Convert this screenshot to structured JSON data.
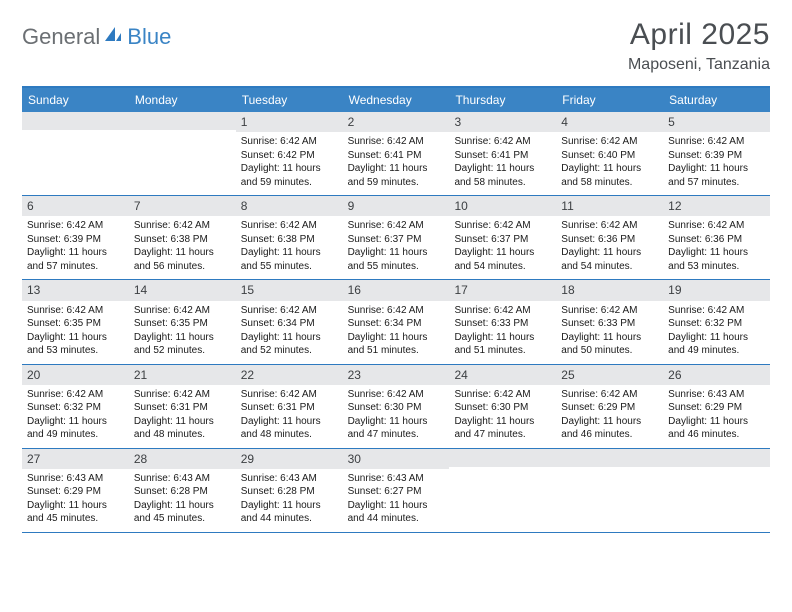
{
  "brand": {
    "text1": "General",
    "text2": "Blue",
    "color1": "#6b6f73",
    "color2": "#3a84c5"
  },
  "title": "April 2025",
  "location": "Maposeni, Tanzania",
  "colors": {
    "header_bg": "#3a84c5",
    "header_text": "#ffffff",
    "border": "#2e7ac0",
    "daynum_bg": "#e6e7e9",
    "daynum_text": "#3c3f42",
    "body_text": "#1a1a1a",
    "page_bg": "#ffffff"
  },
  "day_names": [
    "Sunday",
    "Monday",
    "Tuesday",
    "Wednesday",
    "Thursday",
    "Friday",
    "Saturday"
  ],
  "weeks": [
    [
      {
        "empty": true
      },
      {
        "empty": true
      },
      {
        "n": "1",
        "sunrise": "Sunrise: 6:42 AM",
        "sunset": "Sunset: 6:42 PM",
        "daylight": "Daylight: 11 hours and 59 minutes."
      },
      {
        "n": "2",
        "sunrise": "Sunrise: 6:42 AM",
        "sunset": "Sunset: 6:41 PM",
        "daylight": "Daylight: 11 hours and 59 minutes."
      },
      {
        "n": "3",
        "sunrise": "Sunrise: 6:42 AM",
        "sunset": "Sunset: 6:41 PM",
        "daylight": "Daylight: 11 hours and 58 minutes."
      },
      {
        "n": "4",
        "sunrise": "Sunrise: 6:42 AM",
        "sunset": "Sunset: 6:40 PM",
        "daylight": "Daylight: 11 hours and 58 minutes."
      },
      {
        "n": "5",
        "sunrise": "Sunrise: 6:42 AM",
        "sunset": "Sunset: 6:39 PM",
        "daylight": "Daylight: 11 hours and 57 minutes."
      }
    ],
    [
      {
        "n": "6",
        "sunrise": "Sunrise: 6:42 AM",
        "sunset": "Sunset: 6:39 PM",
        "daylight": "Daylight: 11 hours and 57 minutes."
      },
      {
        "n": "7",
        "sunrise": "Sunrise: 6:42 AM",
        "sunset": "Sunset: 6:38 PM",
        "daylight": "Daylight: 11 hours and 56 minutes."
      },
      {
        "n": "8",
        "sunrise": "Sunrise: 6:42 AM",
        "sunset": "Sunset: 6:38 PM",
        "daylight": "Daylight: 11 hours and 55 minutes."
      },
      {
        "n": "9",
        "sunrise": "Sunrise: 6:42 AM",
        "sunset": "Sunset: 6:37 PM",
        "daylight": "Daylight: 11 hours and 55 minutes."
      },
      {
        "n": "10",
        "sunrise": "Sunrise: 6:42 AM",
        "sunset": "Sunset: 6:37 PM",
        "daylight": "Daylight: 11 hours and 54 minutes."
      },
      {
        "n": "11",
        "sunrise": "Sunrise: 6:42 AM",
        "sunset": "Sunset: 6:36 PM",
        "daylight": "Daylight: 11 hours and 54 minutes."
      },
      {
        "n": "12",
        "sunrise": "Sunrise: 6:42 AM",
        "sunset": "Sunset: 6:36 PM",
        "daylight": "Daylight: 11 hours and 53 minutes."
      }
    ],
    [
      {
        "n": "13",
        "sunrise": "Sunrise: 6:42 AM",
        "sunset": "Sunset: 6:35 PM",
        "daylight": "Daylight: 11 hours and 53 minutes."
      },
      {
        "n": "14",
        "sunrise": "Sunrise: 6:42 AM",
        "sunset": "Sunset: 6:35 PM",
        "daylight": "Daylight: 11 hours and 52 minutes."
      },
      {
        "n": "15",
        "sunrise": "Sunrise: 6:42 AM",
        "sunset": "Sunset: 6:34 PM",
        "daylight": "Daylight: 11 hours and 52 minutes."
      },
      {
        "n": "16",
        "sunrise": "Sunrise: 6:42 AM",
        "sunset": "Sunset: 6:34 PM",
        "daylight": "Daylight: 11 hours and 51 minutes."
      },
      {
        "n": "17",
        "sunrise": "Sunrise: 6:42 AM",
        "sunset": "Sunset: 6:33 PM",
        "daylight": "Daylight: 11 hours and 51 minutes."
      },
      {
        "n": "18",
        "sunrise": "Sunrise: 6:42 AM",
        "sunset": "Sunset: 6:33 PM",
        "daylight": "Daylight: 11 hours and 50 minutes."
      },
      {
        "n": "19",
        "sunrise": "Sunrise: 6:42 AM",
        "sunset": "Sunset: 6:32 PM",
        "daylight": "Daylight: 11 hours and 49 minutes."
      }
    ],
    [
      {
        "n": "20",
        "sunrise": "Sunrise: 6:42 AM",
        "sunset": "Sunset: 6:32 PM",
        "daylight": "Daylight: 11 hours and 49 minutes."
      },
      {
        "n": "21",
        "sunrise": "Sunrise: 6:42 AM",
        "sunset": "Sunset: 6:31 PM",
        "daylight": "Daylight: 11 hours and 48 minutes."
      },
      {
        "n": "22",
        "sunrise": "Sunrise: 6:42 AM",
        "sunset": "Sunset: 6:31 PM",
        "daylight": "Daylight: 11 hours and 48 minutes."
      },
      {
        "n": "23",
        "sunrise": "Sunrise: 6:42 AM",
        "sunset": "Sunset: 6:30 PM",
        "daylight": "Daylight: 11 hours and 47 minutes."
      },
      {
        "n": "24",
        "sunrise": "Sunrise: 6:42 AM",
        "sunset": "Sunset: 6:30 PM",
        "daylight": "Daylight: 11 hours and 47 minutes."
      },
      {
        "n": "25",
        "sunrise": "Sunrise: 6:42 AM",
        "sunset": "Sunset: 6:29 PM",
        "daylight": "Daylight: 11 hours and 46 minutes."
      },
      {
        "n": "26",
        "sunrise": "Sunrise: 6:43 AM",
        "sunset": "Sunset: 6:29 PM",
        "daylight": "Daylight: 11 hours and 46 minutes."
      }
    ],
    [
      {
        "n": "27",
        "sunrise": "Sunrise: 6:43 AM",
        "sunset": "Sunset: 6:29 PM",
        "daylight": "Daylight: 11 hours and 45 minutes."
      },
      {
        "n": "28",
        "sunrise": "Sunrise: 6:43 AM",
        "sunset": "Sunset: 6:28 PM",
        "daylight": "Daylight: 11 hours and 45 minutes."
      },
      {
        "n": "29",
        "sunrise": "Sunrise: 6:43 AM",
        "sunset": "Sunset: 6:28 PM",
        "daylight": "Daylight: 11 hours and 44 minutes."
      },
      {
        "n": "30",
        "sunrise": "Sunrise: 6:43 AM",
        "sunset": "Sunset: 6:27 PM",
        "daylight": "Daylight: 11 hours and 44 minutes."
      },
      {
        "empty": true
      },
      {
        "empty": true
      },
      {
        "empty": true
      }
    ]
  ]
}
